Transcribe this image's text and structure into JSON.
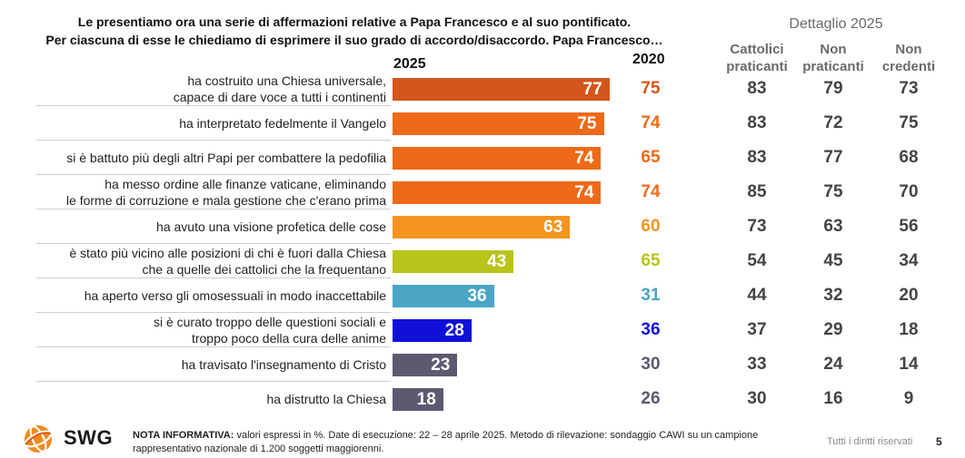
{
  "title_lines": [
    "Le presentiamo ora una serie di affermazioni relative a Papa Francesco e al suo pontificato.",
    "Per ciascuna di esse le chiediamo di esprimere il suo grado di accordo/disaccordo. Papa Francesco…"
  ],
  "col_2025": "2025",
  "col_2020": "2020",
  "detail_title": "Dettaglio 2025",
  "detail_columns": [
    "Cattolici praticanti",
    "Non praticanti",
    "Non credenti"
  ],
  "chart_data": {
    "type": "bar",
    "orientation": "horizontal",
    "xlim": [
      0,
      100
    ],
    "categories": [
      [
        "ha costruito una Chiesa universale,",
        "capace di dare voce a tutti i continenti"
      ],
      [
        "ha interpretato fedelmente il Vangelo"
      ],
      [
        "si è battuto più degli altri Papi per combattere la pedofilia"
      ],
      [
        "ha messo ordine alle finanze vaticane, eliminando",
        "le forme di corruzione e mala gestione che c'erano prima"
      ],
      [
        "ha avuto una visione profetica delle cose"
      ],
      [
        "è stato più vicino alle posizioni di chi è fuori dalla Chiesa",
        "che a quelle dei cattolici che la frequentano"
      ],
      [
        "ha aperto verso gli omosessuali in modo inaccettabile"
      ],
      [
        "si è curato troppo delle questioni sociali e",
        "troppo poco della cura delle anime"
      ],
      [
        "ha travisato l'insegnamento di Cristo"
      ],
      [
        "ha distrutto la Chiesa"
      ]
    ],
    "series": [
      {
        "name": "2025",
        "values": [
          77,
          75,
          74,
          74,
          63,
          43,
          36,
          28,
          23,
          18
        ]
      },
      {
        "name": "2020",
        "values": [
          75,
          74,
          65,
          74,
          60,
          65,
          31,
          36,
          30,
          26
        ]
      },
      {
        "name": "Cattolici praticanti",
        "values": [
          83,
          83,
          83,
          85,
          73,
          54,
          44,
          37,
          33,
          30
        ]
      },
      {
        "name": "Non praticanti",
        "values": [
          79,
          72,
          77,
          75,
          63,
          45,
          32,
          29,
          24,
          16
        ]
      },
      {
        "name": "Non credenti",
        "values": [
          73,
          75,
          68,
          70,
          56,
          34,
          20,
          18,
          14,
          9
        ]
      }
    ],
    "bar_colors": [
      "#d4561b",
      "#ee6a18",
      "#ee6a18",
      "#ee6a18",
      "#f4941f",
      "#b8c41a",
      "#4ba6c6",
      "#1010d8",
      "#5c5970",
      "#5c5970"
    ],
    "value_2020_colors": [
      "#d4561b",
      "#ee6a18",
      "#ee6a18",
      "#ee6a18",
      "#f4941f",
      "#b8c41a",
      "#4ba6c6",
      "#1010d8",
      "#5c5970",
      "#5c5970"
    ]
  },
  "footer": {
    "note_label": "NOTA INFORMATIVA:",
    "note_text": " valori espressi in %. Date di esecuzione: 22 – 28 aprile 2025. Metodo di rilevazione: sondaggio CAWI su un campione rappresentativo nazionale di 1.200 soggetti maggiorenni.",
    "rights": "Tutti i diritti riservati",
    "page": "5",
    "logo_text": "SWG"
  }
}
